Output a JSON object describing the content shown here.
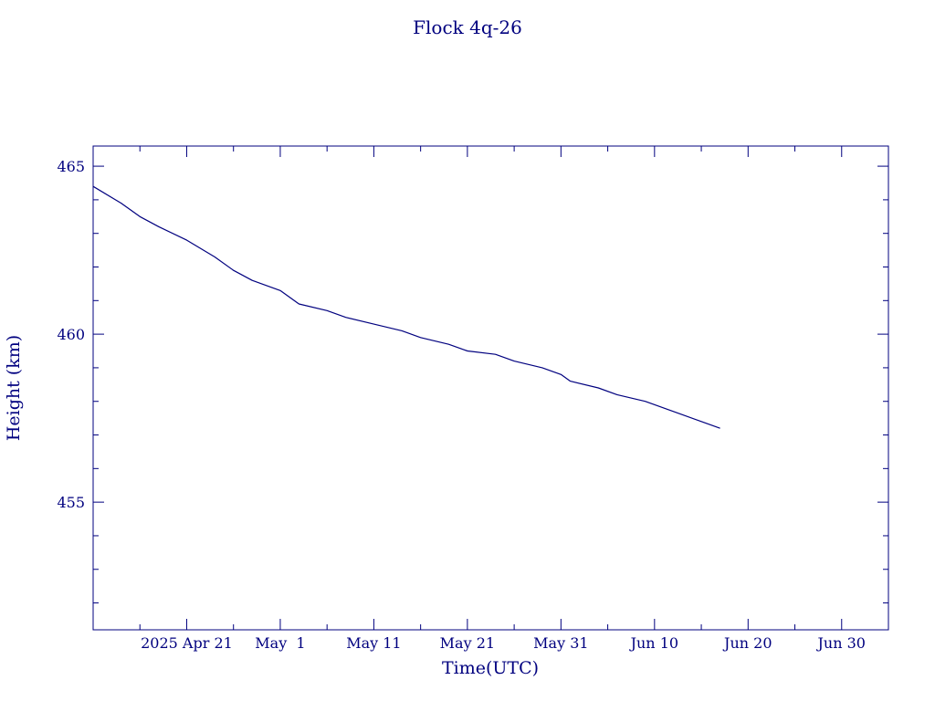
{
  "chart_data": {
    "type": "line",
    "title": "Flock 4q-26",
    "xlabel": "Time(UTC)",
    "ylabel": "Height (km)",
    "x_axis": {
      "start": "2025-04-11",
      "end": "2025-07-05",
      "major_ticks": [
        {
          "date": "2025-04-21",
          "label": "2025 Apr 21"
        },
        {
          "date": "2025-05-01",
          "label": "May  1"
        },
        {
          "date": "2025-05-11",
          "label": "May 11"
        },
        {
          "date": "2025-05-21",
          "label": "May 21"
        },
        {
          "date": "2025-05-31",
          "label": "May 31"
        },
        {
          "date": "2025-06-10",
          "label": "Jun 10"
        },
        {
          "date": "2025-06-20",
          "label": "Jun 20"
        },
        {
          "date": "2025-06-30",
          "label": "Jun 30"
        }
      ],
      "minor_tick_dates": [
        "2025-04-16",
        "2025-04-26",
        "2025-05-06",
        "2025-05-16",
        "2025-05-26",
        "2025-06-05",
        "2025-06-15",
        "2025-06-25"
      ]
    },
    "y_axis": {
      "ylim": [
        451.2,
        465.6
      ],
      "major_ticks": [
        455,
        460,
        465
      ],
      "minor_ticks": [
        452,
        453,
        454,
        456,
        457,
        458,
        459,
        461,
        462,
        463,
        464
      ]
    },
    "grid": false,
    "color": "#00007f",
    "series": [
      {
        "x": [
          "2025-04-11",
          "2025-04-14",
          "2025-04-16",
          "2025-04-18",
          "2025-04-21",
          "2025-04-24",
          "2025-04-26",
          "2025-04-28",
          "2025-05-01",
          "2025-05-03",
          "2025-05-06",
          "2025-05-08",
          "2025-05-11",
          "2025-05-14",
          "2025-05-16",
          "2025-05-19",
          "2025-05-21",
          "2025-05-24",
          "2025-05-26",
          "2025-05-29",
          "2025-05-31",
          "2025-06-01",
          "2025-06-04",
          "2025-06-06",
          "2025-06-09",
          "2025-06-11",
          "2025-06-13",
          "2025-06-15",
          "2025-06-17"
        ],
        "y": [
          464.4,
          463.9,
          463.5,
          463.2,
          462.8,
          462.3,
          461.9,
          461.6,
          461.3,
          460.9,
          460.7,
          460.5,
          460.3,
          460.1,
          459.9,
          459.7,
          459.5,
          459.4,
          459.2,
          459.0,
          458.8,
          458.6,
          458.4,
          458.2,
          458.0,
          457.8,
          457.6,
          457.4,
          457.2
        ]
      }
    ]
  }
}
